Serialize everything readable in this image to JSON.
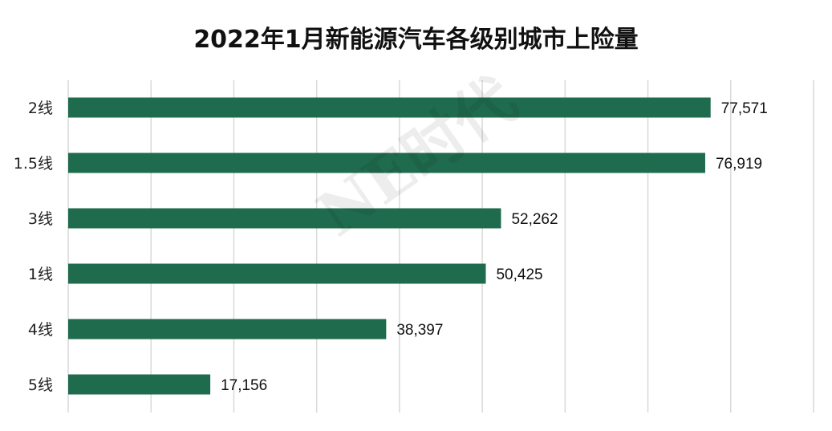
{
  "chart_data": {
    "type": "bar",
    "orientation": "horizontal",
    "title": "2022年1月新能源汽车各级别城市上险量",
    "categories": [
      "2线",
      "1.5线",
      "3线",
      "1线",
      "4线",
      "5线"
    ],
    "values": [
      77571,
      76919,
      52262,
      50425,
      38397,
      17156
    ],
    "value_labels": [
      "77,571",
      "76,919",
      "52,262",
      "50,425",
      "38,397",
      "17,156"
    ],
    "xlim": [
      0,
      90000
    ],
    "grid": true,
    "legend": "none",
    "bar_color": "#1f6b4e",
    "watermark": "NE时代"
  }
}
